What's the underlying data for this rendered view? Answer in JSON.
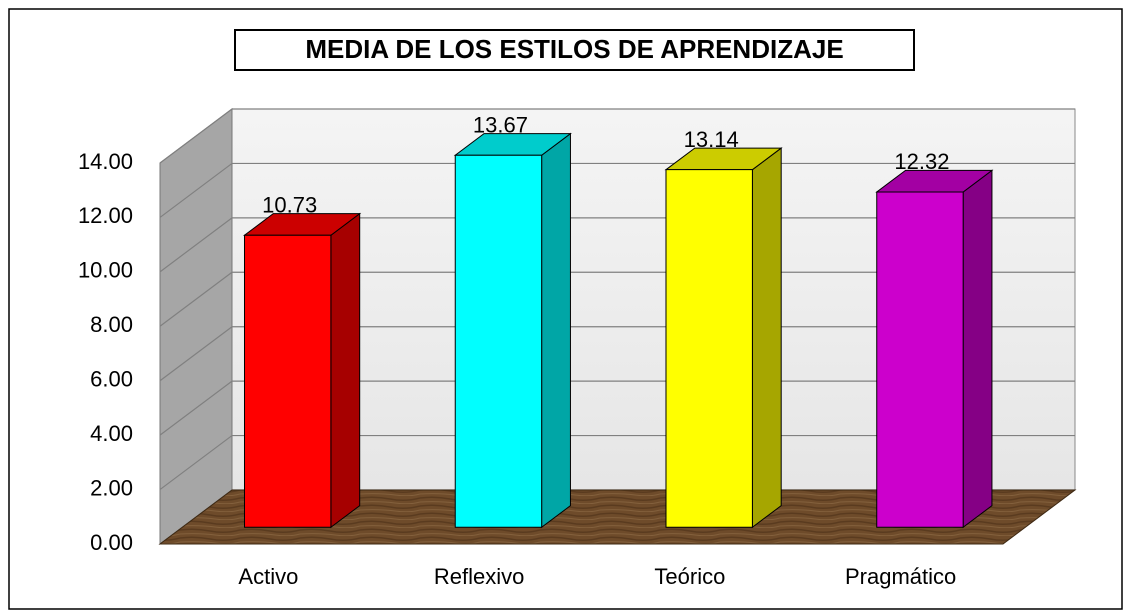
{
  "chart_data": {
    "type": "bar3d",
    "title": "MEDIA DE LOS ESTILOS DE APRENDIZAJE",
    "categories": [
      "Activo",
      "Reflexivo",
      "Teórico",
      "Pragmático"
    ],
    "values": [
      10.73,
      13.67,
      13.14,
      12.32
    ],
    "colors": [
      "#ff0000",
      "#00ffff",
      "#ffff00",
      "#cc00cc"
    ],
    "ylim": [
      0,
      14
    ],
    "yticks": [
      {
        "value": 0,
        "label": "0.00"
      },
      {
        "value": 2,
        "label": "2.00"
      },
      {
        "value": 4,
        "label": "4.00"
      },
      {
        "value": 6,
        "label": "6.00"
      },
      {
        "value": 8,
        "label": "8.00"
      },
      {
        "value": 10,
        "label": "10.00"
      },
      {
        "value": 12,
        "label": "12.00"
      },
      {
        "value": 14,
        "label": "14.00"
      }
    ],
    "grid": true
  }
}
